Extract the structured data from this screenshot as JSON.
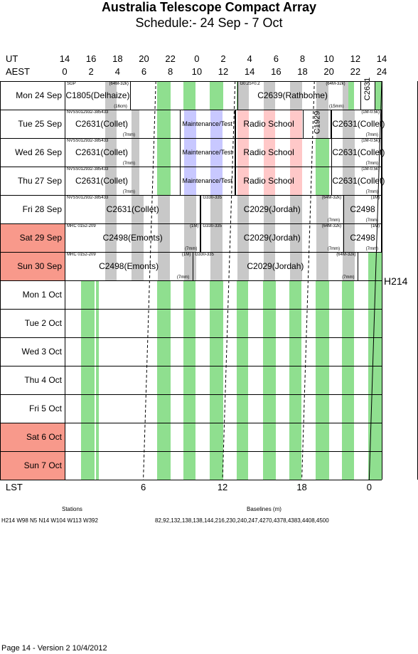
{
  "title": "Australia Telescope Compact Array",
  "subtitle": "Schedule:- 24 Sep - 7  Oct",
  "ut_label": "UT",
  "aest_label": "AEST",
  "ut_ticks": [
    "14",
    "16",
    "18",
    "20",
    "22",
    "0",
    "2",
    "4",
    "6",
    "8",
    "10",
    "12",
    "14"
  ],
  "aest_ticks": [
    "0",
    "2",
    "4",
    "6",
    "8",
    "10",
    "12",
    "14",
    "16",
    "18",
    "20",
    "22",
    "24"
  ],
  "days": [
    {
      "label": "Mon  24 Sep",
      "weekend": false
    },
    {
      "label": "Tue   25 Sep",
      "weekend": false
    },
    {
      "label": "Wed  26 Sep",
      "weekend": false
    },
    {
      "label": "Thu   27 Sep",
      "weekend": false
    },
    {
      "label": "Fri    28 Sep",
      "weekend": false
    },
    {
      "label": "Sat    29 Sep",
      "weekend": true
    },
    {
      "label": "Sun   30 Sep",
      "weekend": true
    },
    {
      "label": "Mon    1  Oct",
      "weekend": false
    },
    {
      "label": "Tue    2  Oct",
      "weekend": false
    },
    {
      "label": "Wed    3  Oct",
      "weekend": false
    },
    {
      "label": "Thu    4  Oct",
      "weekend": false
    },
    {
      "label": "Fri    5  Oct",
      "weekend": false
    },
    {
      "label": "Sat    6  Oct",
      "weekend": true
    },
    {
      "label": "Sun    7  Oct",
      "weekend": true
    }
  ],
  "observations": [
    {
      "row": 0,
      "start": 0,
      "end": 5.0,
      "name": "C1805(Delhaize)",
      "src": "SGP",
      "cfg": "(64M-32k)",
      "rx": "(16cm)"
    },
    {
      "row": 0,
      "start": 13.1,
      "end": 21.4,
      "name": "C2639(Rathbome)",
      "src": "G0.25+0.2",
      "cfg": "(64M-32k)",
      "rx": "(15mm)"
    },
    {
      "row": 0,
      "start": 22.4,
      "end": 23.5,
      "name": "C2631",
      "src": "",
      "cfg": "",
      "rx": "",
      "vertical": true
    },
    {
      "row": 1,
      "start": 0,
      "end": 5.6,
      "name": "C2631(Collet)",
      "src": "NVSS012932-385433",
      "cfg": "",
      "rx": "(7mm)"
    },
    {
      "row": 1,
      "start": 8.7,
      "end": 12.9,
      "name": "Maintenance/Test",
      "src": "",
      "cfg": "",
      "rx": "",
      "small": true
    },
    {
      "row": 1,
      "start": 12.9,
      "end": 18.0,
      "name": "Radio School",
      "src": "",
      "cfg": "",
      "rx": ""
    },
    {
      "row": 1,
      "start": 18.0,
      "end": 20.2,
      "name": "C1929",
      "src": "",
      "cfg": "",
      "rx": "",
      "vertical": true
    },
    {
      "row": 1,
      "start": 20.2,
      "end": 24.0,
      "name": "C2631(Collet)",
      "src": "",
      "cfg": "(1M-0.5k)",
      "rx": "(7mm)"
    },
    {
      "row": 2,
      "start": 0,
      "end": 5.6,
      "name": "C2631(Collet)",
      "src": "NVSS012932-385433",
      "cfg": "",
      "rx": "(7mm)"
    },
    {
      "row": 2,
      "start": 8.7,
      "end": 12.9,
      "name": "Maintenance/Test",
      "src": "",
      "cfg": "",
      "rx": "",
      "small": true
    },
    {
      "row": 2,
      "start": 12.9,
      "end": 18.0,
      "name": "Radio School",
      "src": "",
      "cfg": "",
      "rx": ""
    },
    {
      "row": 2,
      "start": 20.2,
      "end": 24.0,
      "name": "C2631(Collet)",
      "src": "",
      "cfg": "(1M-0.5k)",
      "rx": "(7mm)"
    },
    {
      "row": 3,
      "start": 0,
      "end": 5.6,
      "name": "C2631(Collet)",
      "src": "NVSS012932-385433",
      "cfg": "",
      "rx": "(7mm)"
    },
    {
      "row": 3,
      "start": 8.7,
      "end": 12.9,
      "name": "Maintenance/Test",
      "src": "",
      "cfg": "",
      "rx": "",
      "small": true
    },
    {
      "row": 3,
      "start": 12.9,
      "end": 18.0,
      "name": "Radio School",
      "src": "",
      "cfg": "",
      "rx": ""
    },
    {
      "row": 3,
      "start": 20.2,
      "end": 24.0,
      "name": "C2631(Collet)",
      "src": "",
      "cfg": "(1M-0.5k)",
      "rx": "(7mm)"
    },
    {
      "row": 4,
      "start": 0,
      "end": 10.3,
      "name": "C2631(Collet)",
      "src": "NVSS012932-385433",
      "cfg": "",
      "rx": ""
    },
    {
      "row": 4,
      "start": 10.3,
      "end": 21.1,
      "name": "C2029(Jordah)",
      "src": "G330-335",
      "cfg": "(64M-32k)",
      "rx": "(7mm)"
    },
    {
      "row": 4,
      "start": 21.1,
      "end": 24.0,
      "name": "C2498",
      "src": "",
      "cfg": "(1M)",
      "rx": "(7mm)"
    },
    {
      "row": 5,
      "start": 0,
      "end": 10.3,
      "name": "C2498(Emonts)",
      "src": "MRC 0152-209",
      "cfg": "(1M)",
      "rx": "(7mm)"
    },
    {
      "row": 5,
      "start": 10.3,
      "end": 21.1,
      "name": "C2029(Jordah)",
      "src": "G330-335",
      "cfg": "(64M-32k)",
      "rx": "(7mm)"
    },
    {
      "row": 5,
      "start": 21.1,
      "end": 24.0,
      "name": "C2498",
      "src": "",
      "cfg": "(1M)",
      "rx": "(7mm)"
    },
    {
      "row": 6,
      "start": 0,
      "end": 9.7,
      "name": "C2498(Emonts)",
      "src": "MRC 0152-209",
      "cfg": "(1M)",
      "rx": "(7mm)"
    },
    {
      "row": 6,
      "start": 9.7,
      "end": 22.2,
      "name": "C2029(Jordah)",
      "src": "G330-335",
      "cfg": "(64M-32k)",
      "rx": "(7mm)"
    }
  ],
  "config_label": "H214",
  "lst_label": "LST",
  "lst_ticks": [
    {
      "label": "6"
    },
    {
      "label": "12"
    },
    {
      "label": "18"
    },
    {
      "label": "0"
    }
  ],
  "stations_heading": "Stations",
  "stations": "H214   W98 N5 N14  W104 W113 W392",
  "baselines_heading": "Baselines (m)",
  "baselines": "82,92,132,138,138,144,216,230,240,247,4270,4378,4383,4408,4500",
  "footer": "Page 14 - Version 2  10/4/2012",
  "colors": {
    "day_green": "#8fdf8f",
    "night_grey": "#c8c8c8",
    "maint": "#c8c8ff",
    "school": "#ffc8c8",
    "weekend": "#f8998b"
  }
}
